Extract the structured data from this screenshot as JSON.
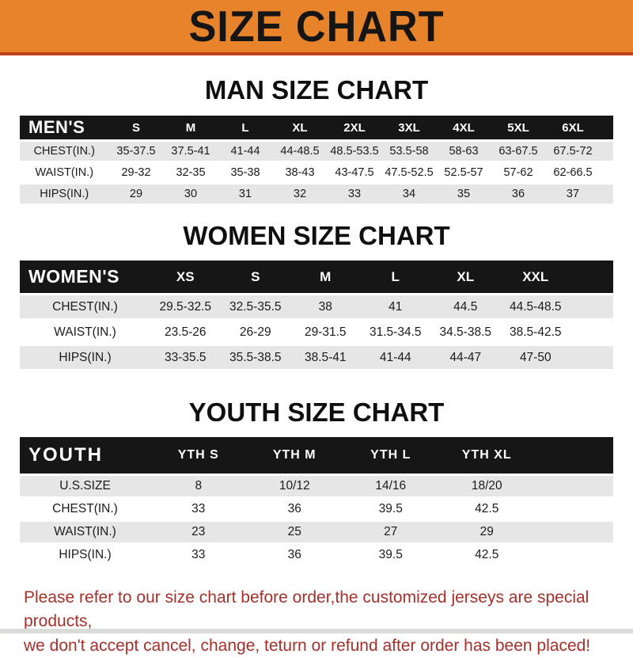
{
  "banner": {
    "title": "SIZE CHART"
  },
  "men": {
    "heading": "MAN SIZE CHART",
    "label": "MEN'S",
    "columns": [
      "S",
      "M",
      "L",
      "XL",
      "2XL",
      "3XL",
      "4XL",
      "5XL",
      "6XL"
    ],
    "rows": [
      {
        "label": "CHEST(IN.)",
        "values": [
          "35-37.5",
          "37.5-41",
          "41-44",
          "44-48.5",
          "48.5-53.5",
          "53.5-58",
          "58-63",
          "63-67.5",
          "67.5-72"
        ]
      },
      {
        "label": "WAIST(IN.)",
        "values": [
          "29-32",
          "32-35",
          "35-38",
          "38-43",
          "43-47.5",
          "47.5-52.5",
          "52.5-57",
          "57-62",
          "62-66.5"
        ]
      },
      {
        "label": "HIPS(IN.)",
        "values": [
          "29",
          "30",
          "31",
          "32",
          "33",
          "34",
          "35",
          "36",
          "37"
        ]
      }
    ]
  },
  "women": {
    "heading": "WOMEN SIZE CHART",
    "label": "WOMEN'S",
    "columns": [
      "XS",
      "S",
      "M",
      "L",
      "XL",
      "XXL"
    ],
    "rows": [
      {
        "label": "CHEST(IN.)",
        "values": [
          "29.5-32.5",
          "32.5-35.5",
          "38",
          "41",
          "44.5",
          "44.5-48.5"
        ]
      },
      {
        "label": "WAIST(IN.)",
        "values": [
          "23.5-26",
          "26-29",
          "29-31.5",
          "31.5-34.5",
          "34.5-38.5",
          "38.5-42.5"
        ]
      },
      {
        "label": "HIPS(IN.)",
        "values": [
          "33-35.5",
          "35.5-38.5",
          "38.5-41",
          "41-44",
          "44-47",
          "47-50"
        ]
      }
    ]
  },
  "youth": {
    "heading": "YOUTH SIZE CHART",
    "label": "YOUTH",
    "columns": [
      "YTH S",
      "YTH M",
      "YTH L",
      "YTH XL"
    ],
    "rows": [
      {
        "label": "U.S.SIZE",
        "values": [
          "8",
          "10/12",
          "14/16",
          "18/20"
        ]
      },
      {
        "label": "CHEST(IN.)",
        "values": [
          "33",
          "36",
          "39.5",
          "42.5"
        ]
      },
      {
        "label": "WAIST(IN.)",
        "values": [
          "23",
          "25",
          "27",
          "29"
        ]
      },
      {
        "label": "HIPS(IN.)",
        "values": [
          "33",
          "36",
          "39.5",
          "42.5"
        ]
      }
    ]
  },
  "footer": {
    "line1": "Please refer to our size chart before order,the customized jerseys are special products,",
    "line2": "we don't accept cancel, change, teturn or refund after order has been placed!"
  },
  "colors": {
    "banner_orange": "#E6832B",
    "banner_edge": "#C04318",
    "header_black": "#161616",
    "row_gray": "#E6E6E6",
    "footer_red": "#A6302A"
  }
}
